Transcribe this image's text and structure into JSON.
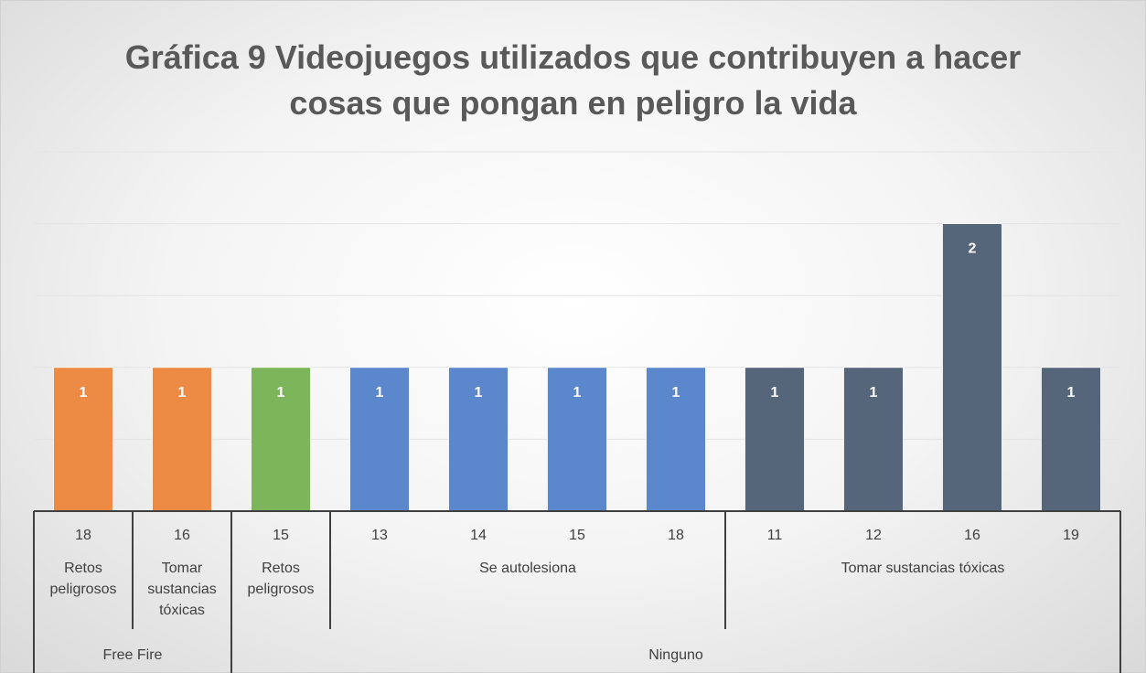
{
  "chart_data": {
    "type": "bar",
    "title": "Gráfica 9 Videojuegos utilizados que contribuyen a hacer cosas que pongan en peligro la vida",
    "categories": [
      "18",
      "16",
      "15",
      "13",
      "14",
      "15",
      "18",
      "11",
      "12",
      "16",
      "19"
    ],
    "values": [
      1,
      1,
      1,
      1,
      1,
      1,
      1,
      1,
      1,
      2,
      1
    ],
    "colors": [
      "#ed8b45",
      "#ed8b45",
      "#7cb55a",
      "#5b87cc",
      "#5b87cc",
      "#5b87cc",
      "#5b87cc",
      "#56667a",
      "#56667a",
      "#56667a",
      "#56667a"
    ],
    "groups": [
      {
        "name": "Retos peligrosos",
        "count": 1
      },
      {
        "name": "Tomar sustancias tóxicas",
        "count": 1
      },
      {
        "name": "Retos peligrosos",
        "count": 1
      },
      {
        "name": "Se autolesiona",
        "count": 4
      },
      {
        "name": "Tomar sustancias tóxicas",
        "count": 4
      }
    ],
    "supergroups": [
      {
        "name": "Free Fire",
        "count": 2
      },
      {
        "name": "Ninguno",
        "count": 9
      }
    ],
    "ylim": [
      0,
      2.5
    ],
    "yticks": [
      0,
      0.5,
      1,
      1.5,
      2,
      2.5
    ],
    "grid": true
  }
}
